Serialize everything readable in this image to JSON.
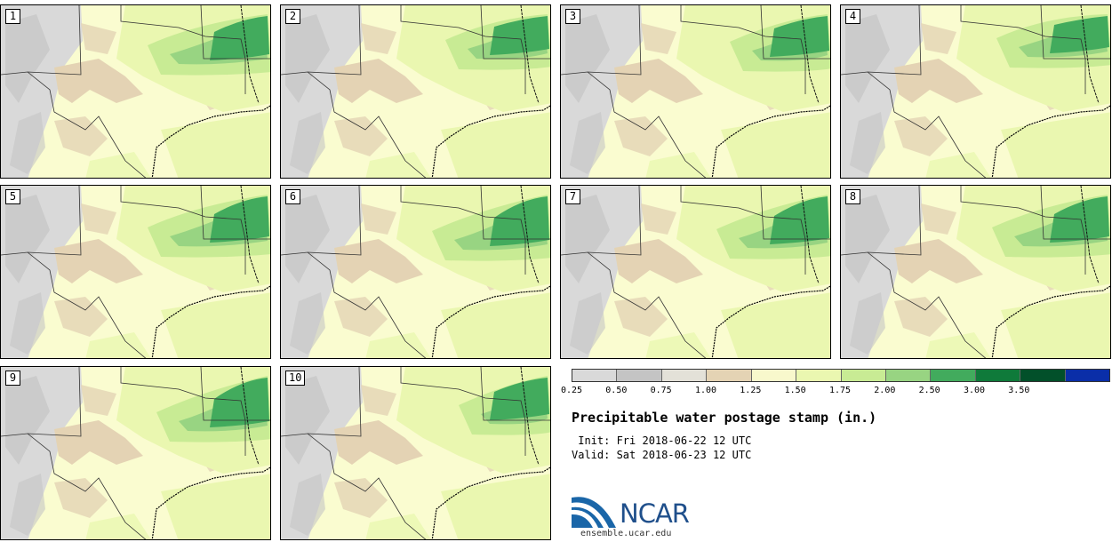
{
  "panels": [
    {
      "label": "1",
      "variant": 0
    },
    {
      "label": "2",
      "variant": 1
    },
    {
      "label": "3",
      "variant": 2
    },
    {
      "label": "4",
      "variant": 3
    },
    {
      "label": "5",
      "variant": 4
    },
    {
      "label": "6",
      "variant": 5
    },
    {
      "label": "7",
      "variant": 6
    },
    {
      "label": "8",
      "variant": 7
    },
    {
      "label": "9",
      "variant": 8
    },
    {
      "label": "10",
      "variant": 9
    }
  ],
  "colorbar": {
    "ticks": [
      "0.25",
      "0.50",
      "0.75",
      "1.00",
      "1.25",
      "1.50",
      "1.75",
      "2.00",
      "2.50",
      "3.00",
      "3.50"
    ],
    "colors": [
      "#d9d9d9",
      "#c4c4c4",
      "#e3e1d8",
      "#e4d3b4",
      "#f8f8cc",
      "#eaf7b0",
      "#c8eb94",
      "#98d482",
      "#42ab5d",
      "#0f7a3a",
      "#02502a",
      "#0a2ea8"
    ]
  },
  "title": "Precipitable water postage stamp (in.)",
  "init": " Init: Fri 2018-06-22 12 UTC",
  "valid": "Valid: Sat 2018-06-23 12 UTC",
  "logo_text": "NCAR",
  "url": "ensemble.ucar.edu"
}
